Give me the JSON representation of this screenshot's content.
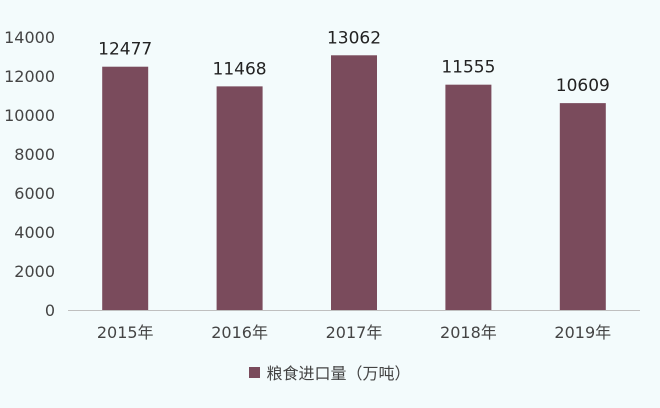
{
  "chart_data": {
    "type": "bar",
    "categories": [
      "2015年",
      "2016年",
      "2017年",
      "2018年",
      "2019年"
    ],
    "series": [
      {
        "name": "粮食进口量（万吨）",
        "values": [
          12477,
          11468,
          13062,
          11555,
          10609
        ]
      }
    ],
    "data_labels": [
      "12477",
      "11468",
      "13062",
      "11555",
      "10609"
    ],
    "yticks": [
      0,
      2000,
      4000,
      6000,
      8000,
      10000,
      12000,
      14000
    ],
    "ylim": [
      0,
      14000
    ],
    "title": "",
    "xlabel": "",
    "ylabel": "",
    "grid": false,
    "legend_position": "bottom",
    "colors": {
      "bar": "#7a4b5c",
      "axis": "#bfbfbf",
      "tick_text": "#444444",
      "label_text": "#222222"
    }
  }
}
